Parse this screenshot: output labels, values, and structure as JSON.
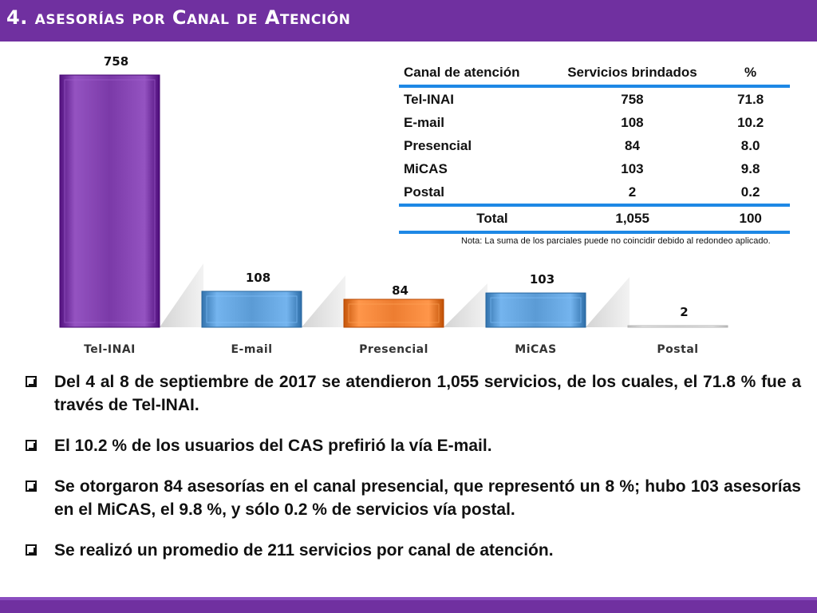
{
  "header": {
    "title": "4. asesorías por Canal de Atención"
  },
  "chart_data": {
    "type": "bar",
    "categories": [
      "Tel-INAI",
      "E-mail",
      "Presencial",
      "MiCAS",
      "Postal"
    ],
    "values": [
      758,
      108,
      84,
      103,
      2
    ],
    "value_labels": [
      "758",
      "108",
      "84",
      "103",
      "2"
    ],
    "colors": [
      "#7b3aa8",
      "#5b9bd5",
      "#ed7d31",
      "#5b9bd5",
      "#e8e8e8"
    ],
    "ylim": [
      0,
      758
    ],
    "title": "",
    "xlabel": "",
    "ylabel": ""
  },
  "table": {
    "headers": [
      "Canal de atención",
      "Servicios brindados",
      "%"
    ],
    "rows": [
      [
        "Tel-INAI",
        "758",
        "71.8"
      ],
      [
        "E-mail",
        "108",
        "10.2"
      ],
      [
        "Presencial",
        "84",
        "8.0"
      ],
      [
        "MiCAS",
        "103",
        "9.8"
      ],
      [
        "Postal",
        "2",
        "0.2"
      ]
    ],
    "total": [
      "Total",
      "1,055",
      "100"
    ],
    "note": "Nota: La suma de los parciales puede no coincidir debido al redondeo aplicado."
  },
  "bullets": [
    "Del 4 al 8 de septiembre de 2017 se atendieron 1,055 servicios, de los cuales, el 71.8 % fue a través de Tel-INAI.",
    "El 10.2 % de los usuarios del CAS prefirió la vía E-mail.",
    "Se otorgaron 84 asesorías en el canal presencial, que representó un 8 %; hubo 103 asesorías en el MiCAS, el 9.8 %, y sólo 0.2 % de servicios vía postal.",
    "Se realizó un promedio de 211 servicios por canal de atención."
  ]
}
